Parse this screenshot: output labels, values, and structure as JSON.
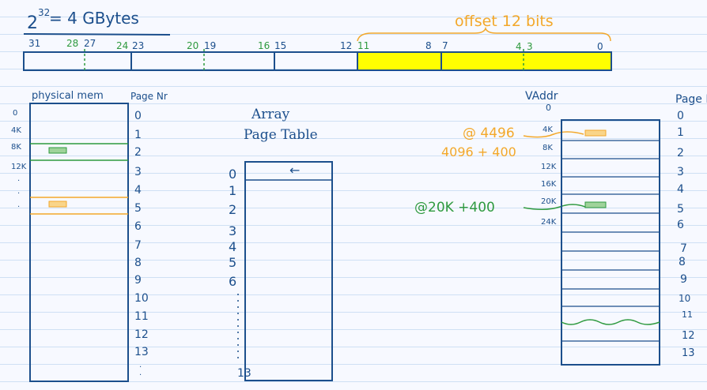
{
  "header": {
    "base": "2",
    "exponent": "32",
    "equals_text": "= 4 GBytes"
  },
  "address_bar": {
    "bit_labels": [
      "31",
      "28",
      "27",
      "24",
      "23",
      "20",
      "19",
      "16",
      "15",
      "12",
      "11",
      "8",
      "7",
      "4",
      "3",
      "0"
    ],
    "offset_label": "offset 12 bits",
    "highlight_color": "#ffff00"
  },
  "physical_memory": {
    "title": "physical mem",
    "page_header": "Page Nr",
    "address_labels": [
      "0",
      "4K",
      "8K",
      "12K"
    ],
    "page_numbers": [
      "0",
      "1",
      "2",
      "3",
      "4",
      "5",
      "6",
      "7",
      "8",
      "9",
      "10",
      "11",
      "12",
      "13"
    ]
  },
  "page_table": {
    "title_line1": "Array",
    "title_line2": "Page Table",
    "arrow": "←",
    "indices": [
      "0",
      "1",
      "2",
      "3",
      "4",
      "5",
      "6",
      "13"
    ]
  },
  "virtual_memory": {
    "title": "VAddr",
    "page_header": "Page Nr",
    "address_labels": [
      "0",
      "4K",
      "8K",
      "12K",
      "16K",
      "20K",
      "24K"
    ],
    "page_numbers": [
      "0",
      "1",
      "2",
      "3",
      "4",
      "5",
      "6",
      "7",
      "8",
      "9",
      "10",
      "11",
      "12",
      "13"
    ]
  },
  "annotations": {
    "addr1": "@ 4496",
    "addr1_calc": "4096 + 400",
    "addr2": "@20K +400"
  },
  "colors": {
    "ink": "#1c4f8c",
    "green": "#2f9a3f",
    "orange": "#f3a82a"
  }
}
